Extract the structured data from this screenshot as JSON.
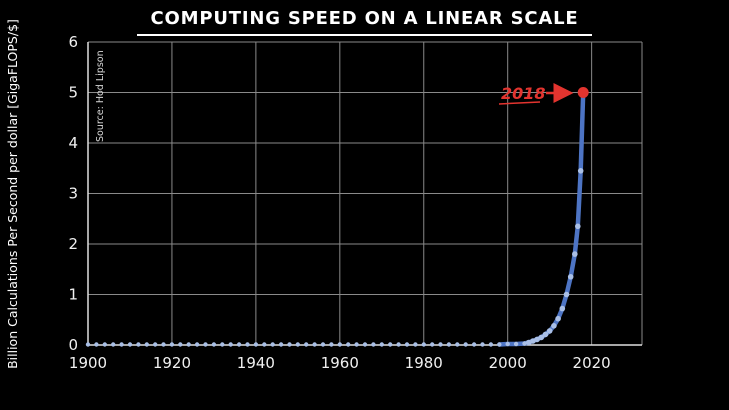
{
  "title": "COMPUTING SPEED ON A LINEAR SCALE",
  "chart_data": {
    "type": "scatter",
    "title": "COMPUTING SPEED ON A LINEAR SCALE",
    "xlabel": "",
    "ylabel": "Billion Calculations Per Second per dollar [GigaFLOPS/$]",
    "source": "Source: Hod Lipson",
    "x_ticks": [
      1900,
      1920,
      1940,
      1960,
      1980,
      2000,
      2020
    ],
    "y_ticks": [
      0,
      1,
      2,
      3,
      4,
      5,
      6
    ],
    "xlim": [
      1900,
      2032
    ],
    "ylim": [
      0,
      6
    ],
    "grid": true,
    "legend": "none",
    "line_color": "#4d74c4",
    "point_color": "#a9bfe6",
    "highlight_color": "#e3342f",
    "grid_color": "#8a8a8a",
    "axis_color": "#e0e0e0",
    "tick_color": "#f0f0f0",
    "points": [
      [
        1900,
        0.01
      ],
      [
        1902,
        0.01
      ],
      [
        1904,
        0.01
      ],
      [
        1906,
        0.01
      ],
      [
        1908,
        0.01
      ],
      [
        1910,
        0.01
      ],
      [
        1912,
        0.01
      ],
      [
        1914,
        0.01
      ],
      [
        1916,
        0.01
      ],
      [
        1918,
        0.01
      ],
      [
        1920,
        0.01
      ],
      [
        1922,
        0.01
      ],
      [
        1924,
        0.01
      ],
      [
        1926,
        0.01
      ],
      [
        1928,
        0.01
      ],
      [
        1930,
        0.01
      ],
      [
        1932,
        0.01
      ],
      [
        1934,
        0.01
      ],
      [
        1936,
        0.01
      ],
      [
        1938,
        0.01
      ],
      [
        1940,
        0.01
      ],
      [
        1942,
        0.01
      ],
      [
        1944,
        0.01
      ],
      [
        1946,
        0.01
      ],
      [
        1948,
        0.01
      ],
      [
        1950,
        0.01
      ],
      [
        1952,
        0.01
      ],
      [
        1954,
        0.01
      ],
      [
        1956,
        0.01
      ],
      [
        1958,
        0.01
      ],
      [
        1960,
        0.01
      ],
      [
        1962,
        0.01
      ],
      [
        1964,
        0.01
      ],
      [
        1966,
        0.01
      ],
      [
        1968,
        0.01
      ],
      [
        1970,
        0.01
      ],
      [
        1972,
        0.01
      ],
      [
        1974,
        0.01
      ],
      [
        1976,
        0.01
      ],
      [
        1978,
        0.01
      ],
      [
        1980,
        0.01
      ],
      [
        1982,
        0.01
      ],
      [
        1984,
        0.01
      ],
      [
        1986,
        0.01
      ],
      [
        1988,
        0.01
      ],
      [
        1990,
        0.01
      ],
      [
        1992,
        0.01
      ],
      [
        1994,
        0.01
      ],
      [
        1996,
        0.01
      ],
      [
        1998,
        0.01
      ],
      [
        2000,
        0.02
      ],
      [
        2002,
        0.02
      ],
      [
        2004,
        0.03
      ],
      [
        2005,
        0.05
      ],
      [
        2006,
        0.08
      ],
      [
        2007,
        0.11
      ],
      [
        2008,
        0.15
      ],
      [
        2009,
        0.21
      ],
      [
        2010,
        0.28
      ],
      [
        2011,
        0.38
      ],
      [
        2012,
        0.52
      ],
      [
        2013,
        0.72
      ],
      [
        2014,
        1.0
      ],
      [
        2015,
        1.35
      ],
      [
        2016,
        1.8
      ],
      [
        2016.7,
        2.35
      ],
      [
        2017.4,
        3.45
      ],
      [
        2018,
        5
      ]
    ],
    "highlight": {
      "x": 2018,
      "y": 5,
      "label": "2018"
    }
  }
}
